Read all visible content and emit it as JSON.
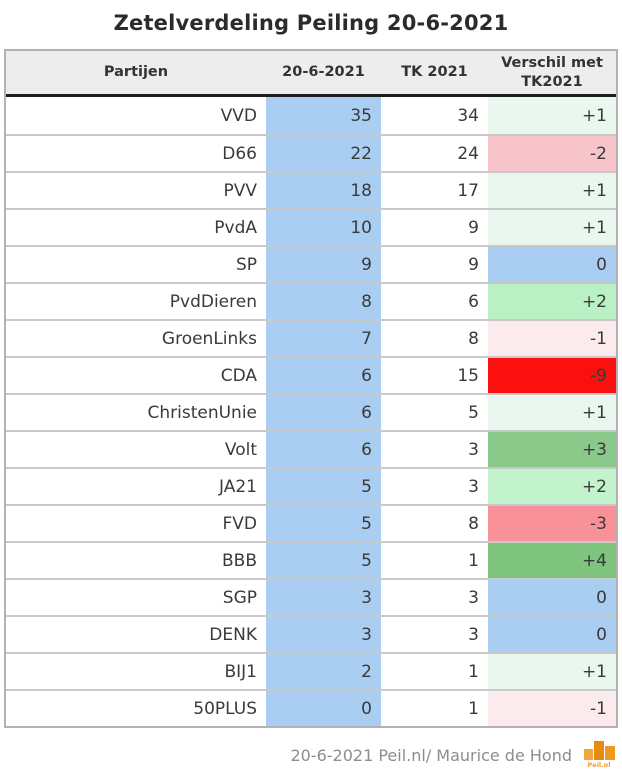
{
  "title": "Zetelverdeling Peiling 20-6-2021",
  "chart_data": {
    "type": "table",
    "title": "Zetelverdeling Peiling 20-6-2021",
    "columns": [
      "Partijen",
      "20-6-2021",
      "TK 2021",
      "Verschil met TK2021"
    ],
    "rows": [
      {
        "party": "VVD",
        "poll": "35",
        "tk": "34",
        "diff": "+1",
        "diff_bg": "#e9f7ee"
      },
      {
        "party": "D66",
        "poll": "22",
        "tk": "24",
        "diff": "-2",
        "diff_bg": "#f7c5c9"
      },
      {
        "party": "PVV",
        "poll": "18",
        "tk": "17",
        "diff": "+1",
        "diff_bg": "#e9f7ee"
      },
      {
        "party": "PvdA",
        "poll": "10",
        "tk": "9",
        "diff": "+1",
        "diff_bg": "#e9f7ee"
      },
      {
        "party": "SP",
        "poll": "9",
        "tk": "9",
        "diff": "0",
        "diff_bg": "#aacdf2"
      },
      {
        "party": "PvdDieren",
        "poll": "8",
        "tk": "6",
        "diff": "+2",
        "diff_bg": "#b9f0c4"
      },
      {
        "party": "GroenLinks",
        "poll": "7",
        "tk": "8",
        "diff": "-1",
        "diff_bg": "#fcebec"
      },
      {
        "party": "CDA",
        "poll": "6",
        "tk": "15",
        "diff": "-9",
        "diff_bg": "#fb0f0f"
      },
      {
        "party": "ChristenUnie",
        "poll": "6",
        "tk": "5",
        "diff": "+1",
        "diff_bg": "#e9f7ee"
      },
      {
        "party": "Volt",
        "poll": "6",
        "tk": "3",
        "diff": "+3",
        "diff_bg": "#8bc98b"
      },
      {
        "party": "JA21",
        "poll": "5",
        "tk": "3",
        "diff": "+2",
        "diff_bg": "#c3f3cd"
      },
      {
        "party": "FVD",
        "poll": "5",
        "tk": "8",
        "diff": "-3",
        "diff_bg": "#f99198"
      },
      {
        "party": "BBB",
        "poll": "5",
        "tk": "1",
        "diff": "+4",
        "diff_bg": "#7ec47e"
      },
      {
        "party": "SGP",
        "poll": "3",
        "tk": "3",
        "diff": "0",
        "diff_bg": "#aacdf2"
      },
      {
        "party": "DENK",
        "poll": "3",
        "tk": "3",
        "diff": "0",
        "diff_bg": "#aacdf2"
      },
      {
        "party": "BIJ1",
        "poll": "2",
        "tk": "1",
        "diff": "+1",
        "diff_bg": "#e9f7ee"
      },
      {
        "party": "50PLUS",
        "poll": "0",
        "tk": "1",
        "diff": "-1",
        "diff_bg": "#fcebec"
      }
    ]
  },
  "colors": {
    "poll_column_bg": "#aacdf2",
    "header_bg": "#ededed",
    "header_rule": "#1d1d1d",
    "outer_border": "#b2b2b2",
    "row_divider": "#c9c9c9"
  },
  "footer": {
    "credit": "20-6-2021 Peil.nl/ Maurice de Hond",
    "logo_text": "Peil.nl",
    "logo_bar_colors": [
      "#f1a63f",
      "#e78a0e",
      "#ee9a20"
    ]
  }
}
